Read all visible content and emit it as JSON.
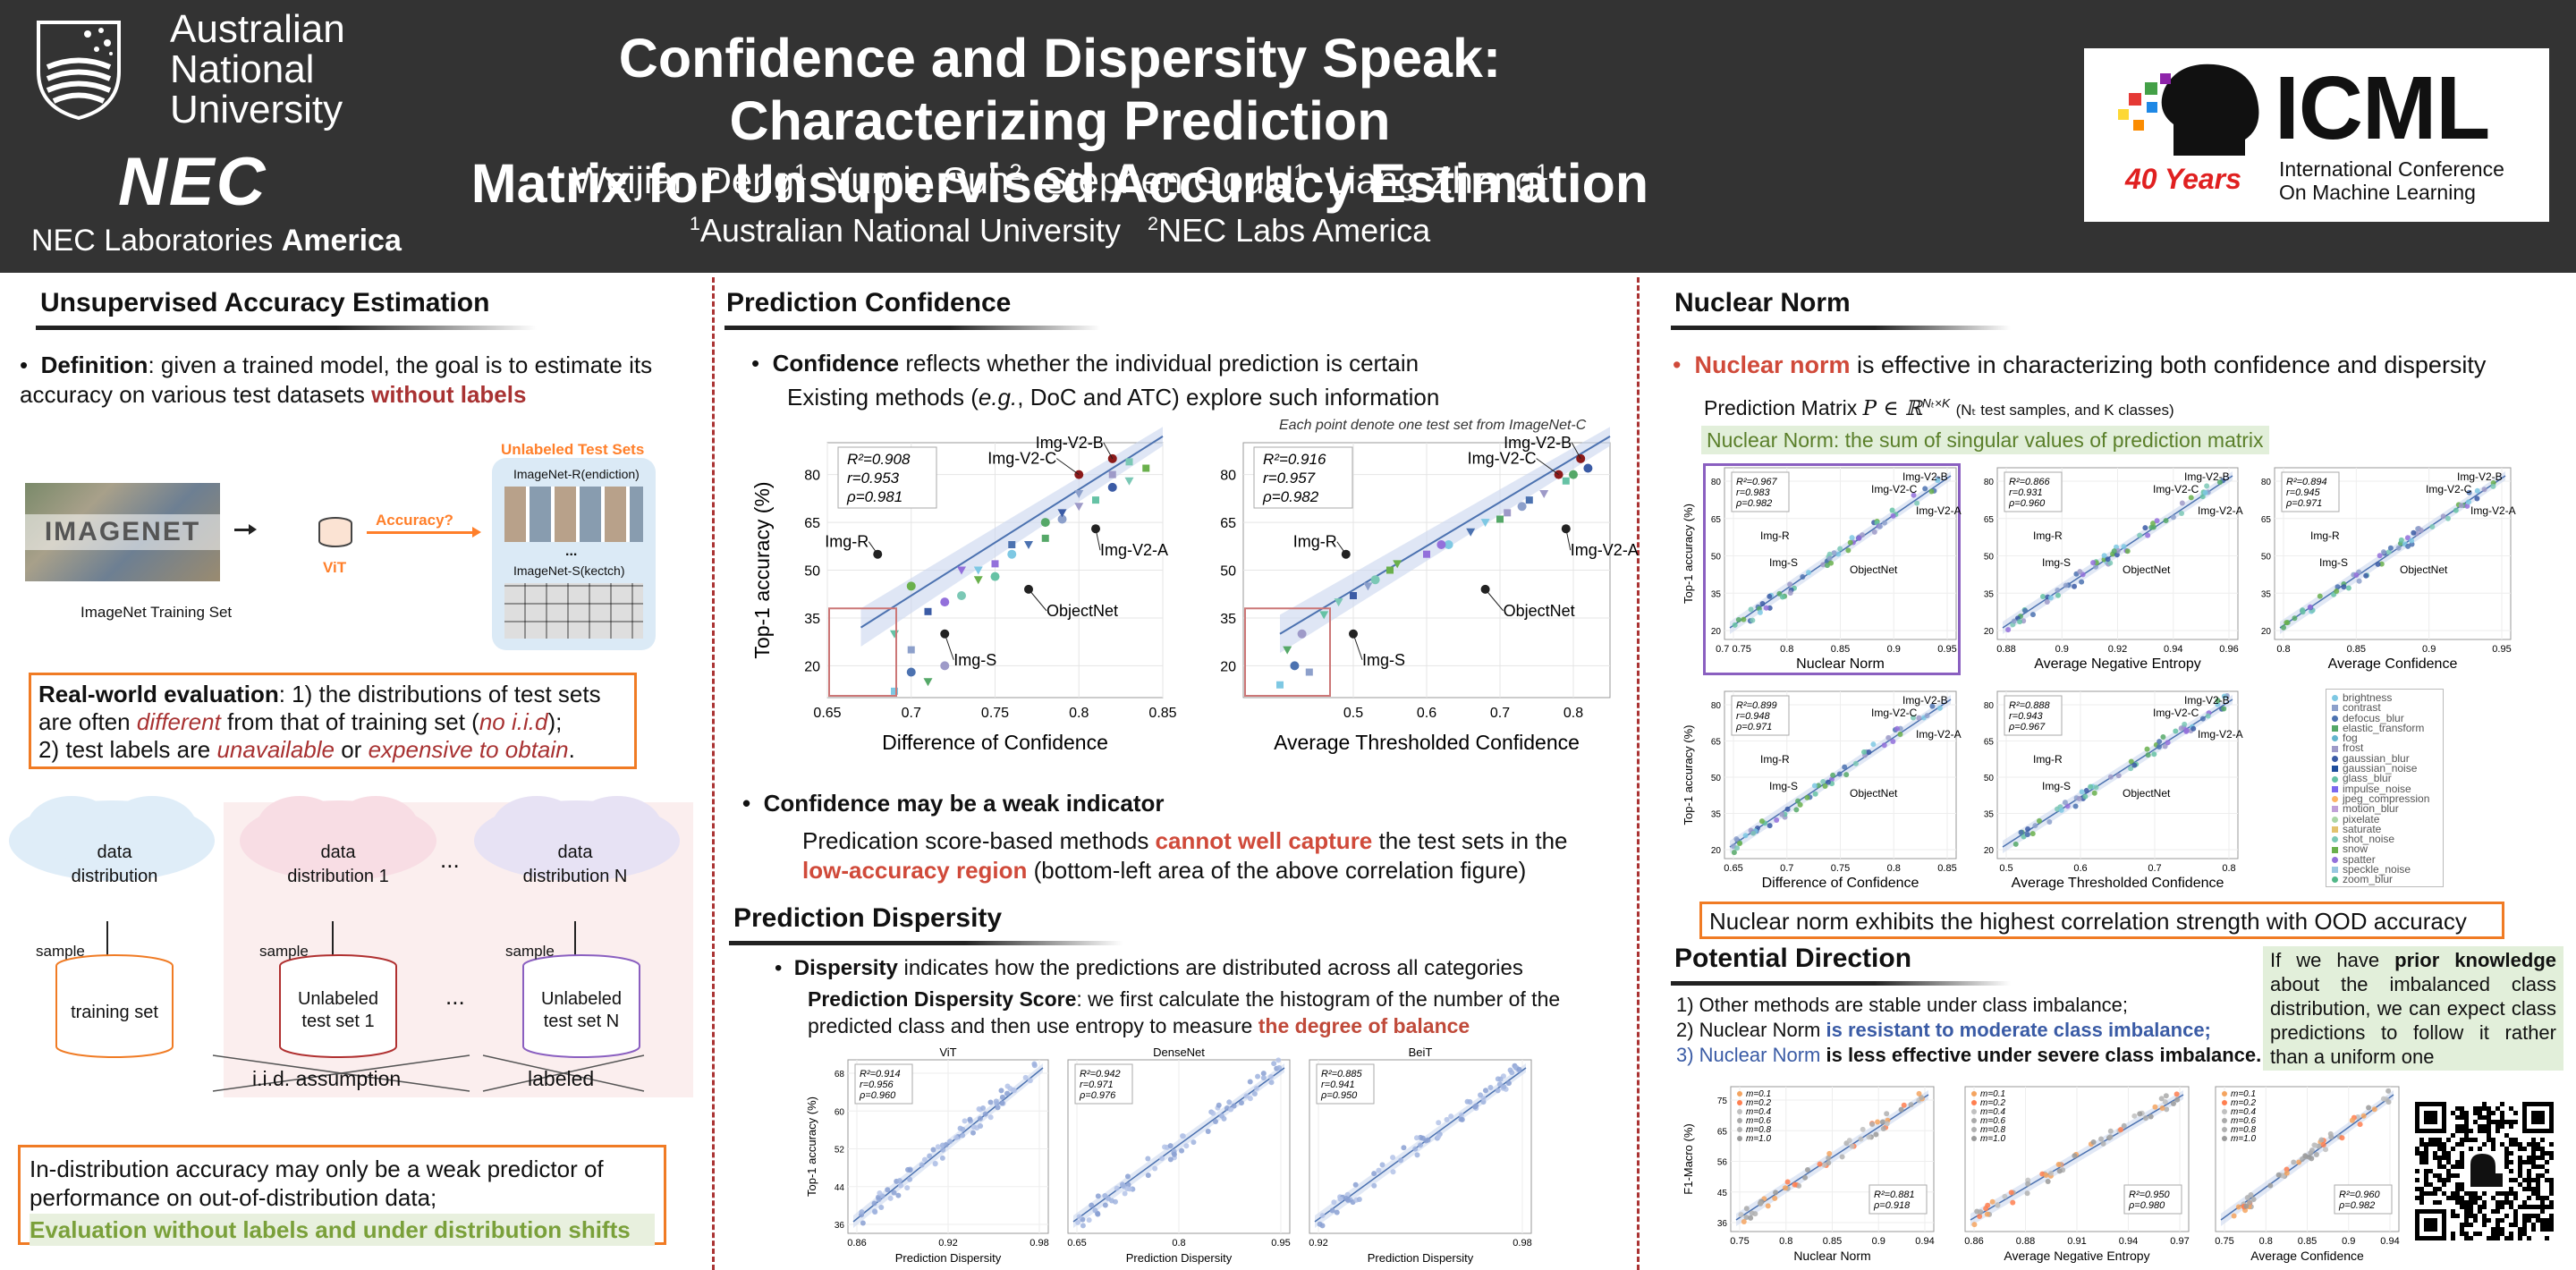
{
  "header": {
    "anu": "Australian\nNational\nUniversity",
    "nec": "NEC",
    "nec_lab_1": "NEC Laboratories ",
    "nec_lab_2": "America",
    "title_1": "Confidence and Dispersity Speak: Characterizing Prediction",
    "title_2": "Matrix for Unsupervised Accuracy Estimation",
    "authors": [
      {
        "name": "Weijian Deng",
        "sup": "1"
      },
      {
        "name": "Yumin Suh",
        "sup": "2"
      },
      {
        "name": "Stephen Gould",
        "sup": "1"
      },
      {
        "name": "Liang Zheng",
        "sup": "1"
      }
    ],
    "affil_1_sup": "1",
    "affil_1": "Australian National University",
    "affil_2_sup": "2",
    "affil_2": "NEC Labs America",
    "icml": "ICML",
    "icml_sub_1": "International Conference",
    "icml_sub_2": "On Machine Learning",
    "icml_years": "40 Years"
  },
  "col1": {
    "heading": "Unsupervised Accuracy Estimation",
    "def_label": "Definition",
    "def_text": ": given a trained model, the goal is to estimate its accuracy on various test datasets ",
    "def_red": "without labels",
    "unlabeled_sets": "Unlabeled Test Sets",
    "imagenet_r": "ImageNet-R(endiction)",
    "imagenet_s": "ImageNet-S(kectch)",
    "dots": "...",
    "imagenet_logo": "IMAGENET",
    "accuracy_q": "Accuracy?",
    "vit": "ViT",
    "train_set": "ImageNet Training Set",
    "rw_label": "Real-world evaluation",
    "rw_1": ": 1) the distributions of test sets are often ",
    "rw_different": "different",
    "rw_2": " from that of training set (",
    "rw_iid": "no i.i.d",
    "rw_3": ");",
    "rw_4": "2) test labels are ",
    "rw_unavail": "unavailable",
    "rw_or": " or ",
    "rw_expensive": "expensive to obtain",
    "rw_end": ".",
    "cloud_1": "data\ndistribution",
    "cloud_2": "data\ndistribution 1",
    "cloud_3": "data\ndistribution N",
    "cdots": "...",
    "sample": "sample",
    "cyl_1": "training set",
    "cyl_2": "Unlabeled\ntest set 1",
    "cyl_3": "Unlabeled\ntest set N",
    "iid": "i.i.d. assumption",
    "labeled": "labeled",
    "bottom_1": "In-distribution accuracy may only be a weak predictor of performance on out-of-distribution data;",
    "bottom_2": "Evaluation without labels and under distribution shifts"
  },
  "col2": {
    "heading": "Prediction Confidence",
    "conf_label": "Confidence",
    "conf_text": " reflects whether the individual prediction is certain",
    "conf_text2a": "Existing methods (",
    "conf_eg": "e.g.",
    "conf_text2b": ", DoC and ATC) explore such information",
    "note": "Each point denote one test set from ImageNet-C",
    "weak_heading": "Confidence may be a weak indicator",
    "weak_1": "Predication score-based methods ",
    "weak_red1": "cannot well capture",
    "weak_2": " the test sets in the ",
    "weak_red2": "low-accuracy region",
    "weak_3": " (bottom-left area of the above correlation figure)",
    "disp_heading": "Prediction Dispersity",
    "disp_label": "Dispersity",
    "disp_text": " indicates how the predictions are distributed across all categories",
    "pds_label": "Prediction Dispersity Score",
    "pds_text": ": we first calculate the histogram of the number of the predicted class and then use entropy to measure ",
    "pds_red": "the degree of balance"
  },
  "col3": {
    "heading": "Nuclear Norm",
    "nn_red": "Nuclear norm",
    "nn_text": " is effective in characterizing both confidence and dispersity",
    "pm_label": "Prediction Matrix ",
    "pm_math": "P ∈ ℝ",
    "pm_exp": "Nₜ×K",
    "pm_note": "(Nₜ test samples, and K classes)",
    "nn_def": "Nuclear Norm: the sum of singular values of prediction matrix",
    "highest": "Nuclear norm exhibits the highest correlation strength with OOD accuracy",
    "legend": [
      "brightness",
      "contrast",
      "defocus_blur",
      "elastic_transform",
      "fog",
      "frost",
      "gaussian_blur",
      "gaussian_noise",
      "glass_blur",
      "impulse_noise",
      "jpeg_compression",
      "motion_blur",
      "pixelate",
      "saturate",
      "shot_noise",
      "snow",
      "spatter",
      "speckle_noise",
      "zoom_blur"
    ],
    "legend_colors": [
      "#7ec8e3",
      "#8da0cb",
      "#4c72b0",
      "#55a868",
      "#64b5cd",
      "#9e9ac8",
      "#3b5ba5",
      "#1f4e9c",
      "#66c2a5",
      "#7b68ee",
      "#fdb462",
      "#c0a0d8",
      "#aad5a5",
      "#e3c26e",
      "#7bc8b5",
      "#6ab04c",
      "#9370db",
      "#9ac7e0",
      "#52b788"
    ],
    "pd_heading": "Potential Direction",
    "pd_1": "1) Other methods are stable under class imbalance;",
    "pd_2a": "2) Nuclear Norm ",
    "pd_2b": "is resistant to moderate class imbalance;",
    "pd_3a": "3) Nuclear Norm ",
    "pd_3b": "is less effective under severe class imbalance.",
    "prior_a": "If we have ",
    "prior_b": "prior knowledge",
    "prior_c": " about the imbalanced class distribution, we can expect class predictions to follow it rather than a uniform one"
  },
  "chart_data": [
    {
      "type": "scatter",
      "title": "",
      "xlabel": "Difference of Confidence",
      "ylabel": "Top-1 accuracy (%)",
      "xlim": [
        0.65,
        0.85
      ],
      "ylim": [
        10,
        90
      ],
      "xticks": [
        "0.65",
        "0.7",
        "0.75",
        "0.8",
        "0.85"
      ],
      "yticks": [
        "20",
        "35",
        "50",
        "65",
        "80"
      ],
      "stats": [
        "R²=0.908",
        "r=0.953",
        "ρ=0.981"
      ],
      "fit": [
        [
          0.67,
          32
        ],
        [
          0.85,
          92
        ]
      ],
      "annotations": [
        {
          "label": "Img-V2-B",
          "x": 0.82,
          "y": 85
        },
        {
          "label": "Img-V2-C",
          "x": 0.8,
          "y": 80
        },
        {
          "label": "Img-V2-A",
          "x": 0.81,
          "y": 63
        },
        {
          "label": "ObjectNet",
          "x": 0.77,
          "y": 44
        },
        {
          "label": "Img-R",
          "x": 0.68,
          "y": 55
        },
        {
          "label": "Img-S",
          "x": 0.72,
          "y": 30
        }
      ],
      "points": [
        [
          0.69,
          12
        ],
        [
          0.7,
          18
        ],
        [
          0.71,
          15
        ],
        [
          0.7,
          25
        ],
        [
          0.72,
          20
        ],
        [
          0.69,
          30
        ],
        [
          0.71,
          37
        ],
        [
          0.73,
          42
        ],
        [
          0.74,
          47
        ],
        [
          0.75,
          52
        ],
        [
          0.76,
          55
        ],
        [
          0.77,
          58
        ],
        [
          0.78,
          60
        ],
        [
          0.79,
          66
        ],
        [
          0.8,
          70
        ],
        [
          0.81,
          72
        ],
        [
          0.82,
          76
        ],
        [
          0.83,
          78
        ],
        [
          0.84,
          82
        ],
        [
          0.72,
          40
        ],
        [
          0.74,
          50
        ],
        [
          0.76,
          58
        ],
        [
          0.78,
          65
        ],
        [
          0.8,
          74
        ],
        [
          0.82,
          80
        ],
        [
          0.75,
          48
        ],
        [
          0.79,
          68
        ],
        [
          0.83,
          84
        ],
        [
          0.7,
          45
        ],
        [
          0.73,
          50
        ]
      ]
    },
    {
      "type": "scatter",
      "xlabel": "Average Thresholded Confidence",
      "ylabel": "",
      "xlim": [
        0.35,
        0.85
      ],
      "ylim": [
        10,
        90
      ],
      "xticks": [
        "0.5",
        "0.6",
        "0.7",
        "0.8"
      ],
      "yticks": [
        "20",
        "35",
        "50",
        "65",
        "80"
      ],
      "stats": [
        "R²=0.916",
        "r=0.957",
        "ρ=0.982"
      ],
      "fit": [
        [
          0.4,
          30
        ],
        [
          0.85,
          92
        ]
      ],
      "annotations": [
        {
          "label": "Img-V2-B",
          "x": 0.81,
          "y": 85
        },
        {
          "label": "Img-V2-C",
          "x": 0.78,
          "y": 80
        },
        {
          "label": "Img-V2-A",
          "x": 0.79,
          "y": 63
        },
        {
          "label": "ObjectNet",
          "x": 0.68,
          "y": 44
        },
        {
          "label": "Img-R",
          "x": 0.49,
          "y": 55
        },
        {
          "label": "Img-S",
          "x": 0.5,
          "y": 30
        }
      ],
      "points": [
        [
          0.4,
          14
        ],
        [
          0.42,
          20
        ],
        [
          0.41,
          25
        ],
        [
          0.44,
          18
        ],
        [
          0.43,
          30
        ],
        [
          0.46,
          36
        ],
        [
          0.5,
          42
        ],
        [
          0.53,
          47
        ],
        [
          0.56,
          52
        ],
        [
          0.6,
          55
        ],
        [
          0.63,
          58
        ],
        [
          0.66,
          62
        ],
        [
          0.7,
          66
        ],
        [
          0.73,
          70
        ],
        [
          0.76,
          74
        ],
        [
          0.79,
          78
        ],
        [
          0.82,
          82
        ],
        [
          0.48,
          40
        ],
        [
          0.55,
          50
        ],
        [
          0.62,
          58
        ],
        [
          0.68,
          65
        ],
        [
          0.74,
          72
        ],
        [
          0.8,
          80
        ],
        [
          0.52,
          45
        ],
        [
          0.71,
          68
        ]
      ]
    }
  ],
  "nn_charts": [
    {
      "xlabel": "Nuclear Norm",
      "stats": [
        "R²=0.967",
        "r=0.983",
        "ρ=0.982"
      ],
      "xticks": [
        "0.7 0.75",
        "0.8",
        "0.85",
        "0.9",
        "0.95"
      ],
      "labels": [
        "Img-V2-B",
        "Img-V2-C",
        "Img-V2-A",
        "Img-R",
        "Img-S",
        "ObjectNet"
      ]
    },
    {
      "xlabel": "Average Negative Entropy",
      "stats": [
        "R²=0.866",
        "r=0.931",
        "ρ=0.960"
      ],
      "xticks": [
        "0.88",
        "0.9",
        "0.92",
        "0.94",
        "0.96"
      ],
      "labels": [
        "Img-V2-B",
        "Img-V2-C",
        "Img-V2-A",
        "Img-R",
        "Img-S",
        "ObjectNet"
      ]
    },
    {
      "xlabel": "Average Confidence",
      "stats": [
        "R²=0.894",
        "r=0.945",
        "ρ=0.971"
      ],
      "xticks": [
        "0.8",
        "0.85",
        "0.9",
        "0.95"
      ],
      "labels": [
        "Img-V2-B",
        "Img-V2-C",
        "Img-V2-A",
        "Img-R",
        "Img-S",
        "ObjectNet"
      ]
    },
    {
      "xlabel": "Difference of Confidence",
      "stats": [
        "R²=0.899",
        "r=0.948",
        "ρ=0.971"
      ],
      "xticks": [
        "0.65",
        "0.7",
        "0.75",
        "0.8",
        "0.85"
      ],
      "labels": [
        "Img-V2-B",
        "Img-V2-C",
        "Img-V2-A",
        "Img-R",
        "Img-S",
        "ObjectNet"
      ]
    },
    {
      "xlabel": "Average Thresholded Confidence",
      "stats": [
        "R²=0.888",
        "r=0.943",
        "ρ=0.967"
      ],
      "xticks": [
        "0.5",
        "0.6",
        "0.7",
        "0.8"
      ],
      "labels": [
        "Img-V2-B",
        "Img-V2-C",
        "Img-V2-A",
        "Img-R",
        "Img-S",
        "ObjectNet"
      ]
    }
  ],
  "nn_ylabel": "Top-1 accuracy (%)",
  "disp_charts": [
    {
      "title": "ViT",
      "xlabel": "Prediction Dispersity",
      "stats": [
        "R²=0.914",
        "r=0.956",
        "ρ=0.960"
      ],
      "xticks": [
        "0.86",
        "0.92",
        "0.98"
      ]
    },
    {
      "title": "DenseNet",
      "xlabel": "Prediction Dispersity",
      "stats": [
        "R²=0.942",
        "r=0.971",
        "ρ=0.976"
      ],
      "xticks": [
        "0.65",
        "0.8",
        "0.95"
      ]
    },
    {
      "title": "BeiT",
      "xlabel": "Prediction Dispersity",
      "stats": [
        "R²=0.885",
        "r=0.941",
        "ρ=0.950"
      ],
      "xticks": [
        "0.92",
        "0.98"
      ]
    }
  ],
  "disp_ylabel": "Top-1 accuracy (%)",
  "imb_charts": [
    {
      "xlabel": "Nuclear Norm",
      "stats": [
        "R²=0.881",
        "ρ=0.918"
      ],
      "xticks": [
        "0.75",
        "0.8",
        "0.85",
        "0.9",
        "0.94"
      ]
    },
    {
      "xlabel": "Average Negative Entropy",
      "stats": [
        "R²=0.950",
        "ρ=0.980"
      ],
      "xticks": [
        "0.86",
        "0.88",
        "0.91",
        "0.94",
        "0.97"
      ]
    },
    {
      "xlabel": "Average Confidence",
      "stats": [
        "R²=0.960",
        "ρ=0.982"
      ],
      "xticks": [
        "0.75",
        "0.8",
        "0.85",
        "0.9",
        "0.94"
      ]
    }
  ],
  "imb_ylabel": "F1-Macro (%)",
  "imb_legend": [
    "m=0.1",
    "m=0.2",
    "m=0.4",
    "m=0.6",
    "m=0.8",
    "m=1.0"
  ]
}
